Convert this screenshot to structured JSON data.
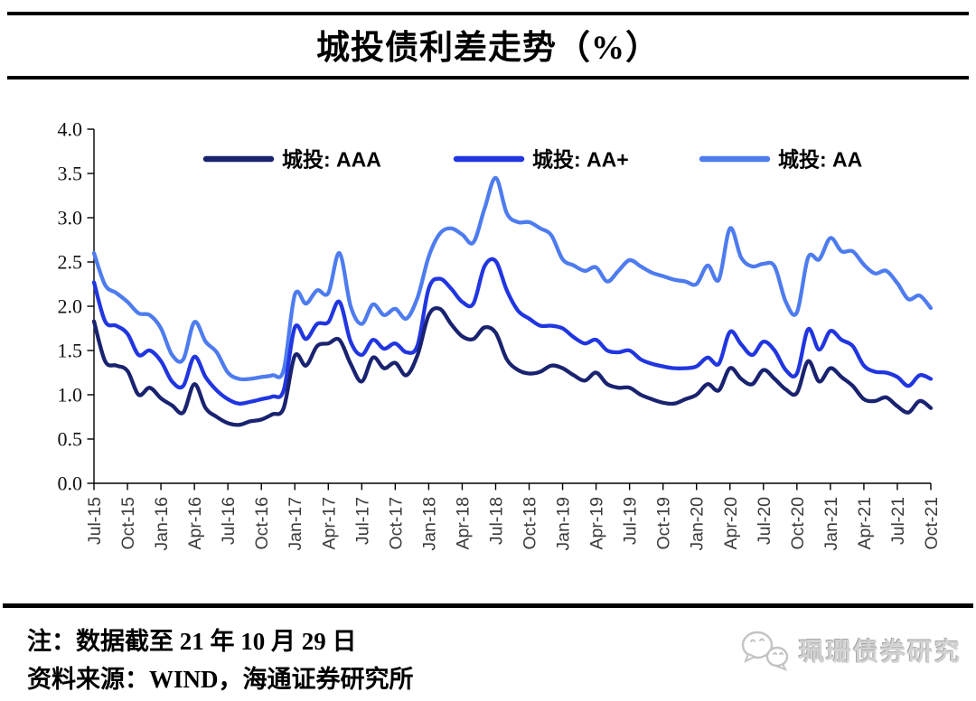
{
  "title": "城投债利差走势（%）",
  "chart_data": {
    "type": "line",
    "title": "城投债利差走势（%）",
    "x_start": "Jul-15",
    "x_end": "Oct-21",
    "x_frequency": "monthly",
    "x_tick_labels": [
      "Jul-15",
      "Oct-15",
      "Jan-16",
      "Apr-16",
      "Jul-16",
      "Oct-16",
      "Jan-17",
      "Apr-17",
      "Jul-17",
      "Oct-17",
      "Jan-18",
      "Apr-18",
      "Jul-18",
      "Oct-18",
      "Jan-19",
      "Apr-19",
      "Jul-19",
      "Oct-19",
      "Jan-20",
      "Apr-20",
      "Jul-20",
      "Oct-20",
      "Jan-21",
      "Apr-21",
      "Jul-21",
      "Oct-21"
    ],
    "x_tick_every": 3,
    "ylim": [
      0.0,
      4.0
    ],
    "ytick_step": 0.5,
    "grid": false,
    "legend_position": "top",
    "axis_color": "#000000",
    "x_tick_label_color": "#3a3a3a",
    "y_tick_label_color": "#111111",
    "series": [
      {
        "id": "aaa",
        "name": "城投: AAA",
        "color": "#1A2370",
        "values": [
          1.83,
          1.38,
          1.33,
          1.27,
          1.0,
          1.08,
          0.96,
          0.88,
          0.8,
          1.12,
          0.85,
          0.75,
          0.68,
          0.66,
          0.7,
          0.72,
          0.78,
          0.85,
          1.44,
          1.33,
          1.55,
          1.58,
          1.62,
          1.35,
          1.15,
          1.42,
          1.3,
          1.36,
          1.22,
          1.45,
          1.9,
          1.97,
          1.8,
          1.66,
          1.63,
          1.76,
          1.7,
          1.4,
          1.28,
          1.24,
          1.26,
          1.33,
          1.3,
          1.22,
          1.16,
          1.25,
          1.12,
          1.08,
          1.08,
          1.0,
          0.95,
          0.91,
          0.9,
          0.95,
          1.0,
          1.12,
          1.05,
          1.3,
          1.18,
          1.12,
          1.28,
          1.18,
          1.06,
          1.02,
          1.38,
          1.15,
          1.3,
          1.2,
          1.1,
          0.95,
          0.93,
          0.97,
          0.87,
          0.8,
          0.93,
          0.85
        ]
      },
      {
        "id": "aa-plus",
        "name": "城投: AA+",
        "color": "#2136E0",
        "values": [
          2.27,
          1.83,
          1.78,
          1.69,
          1.45,
          1.5,
          1.38,
          1.15,
          1.1,
          1.43,
          1.2,
          1.05,
          0.95,
          0.9,
          0.92,
          0.95,
          0.98,
          1.05,
          1.76,
          1.63,
          1.8,
          1.82,
          2.05,
          1.6,
          1.45,
          1.62,
          1.52,
          1.58,
          1.48,
          1.56,
          2.2,
          2.31,
          2.2,
          2.05,
          2.03,
          2.45,
          2.51,
          2.18,
          1.95,
          1.86,
          1.78,
          1.78,
          1.75,
          1.65,
          1.58,
          1.62,
          1.5,
          1.48,
          1.5,
          1.4,
          1.35,
          1.32,
          1.3,
          1.3,
          1.32,
          1.42,
          1.35,
          1.71,
          1.57,
          1.45,
          1.6,
          1.5,
          1.28,
          1.24,
          1.74,
          1.51,
          1.72,
          1.62,
          1.55,
          1.33,
          1.26,
          1.25,
          1.2,
          1.1,
          1.22,
          1.18
        ]
      },
      {
        "id": "aa",
        "name": "城投: AA",
        "color": "#4E7CEF",
        "values": [
          2.6,
          2.24,
          2.15,
          2.05,
          1.92,
          1.9,
          1.75,
          1.45,
          1.4,
          1.82,
          1.6,
          1.48,
          1.25,
          1.18,
          1.18,
          1.2,
          1.22,
          1.28,
          2.13,
          2.03,
          2.18,
          2.15,
          2.6,
          2.0,
          1.8,
          2.02,
          1.9,
          1.97,
          1.86,
          2.1,
          2.56,
          2.82,
          2.88,
          2.81,
          2.72,
          3.1,
          3.45,
          3.05,
          2.95,
          2.95,
          2.88,
          2.8,
          2.53,
          2.46,
          2.4,
          2.44,
          2.28,
          2.4,
          2.52,
          2.45,
          2.38,
          2.34,
          2.3,
          2.28,
          2.25,
          2.46,
          2.3,
          2.88,
          2.55,
          2.45,
          2.48,
          2.45,
          2.05,
          1.93,
          2.55,
          2.53,
          2.77,
          2.62,
          2.62,
          2.47,
          2.37,
          2.4,
          2.26,
          2.08,
          2.12,
          1.98
        ]
      }
    ]
  },
  "footer": {
    "note": "注：数据截至 21 年 10 月 29 日",
    "source": "资料来源：WIND，海通证券研究所",
    "watermark": "珮珊债券研究",
    "watermark_color": "#c9c9c9"
  }
}
